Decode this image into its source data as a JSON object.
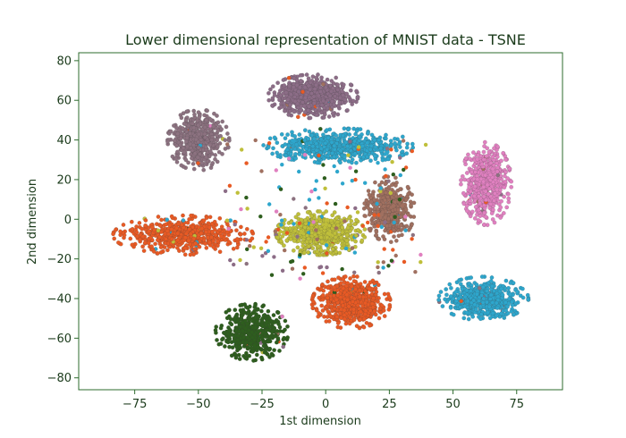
{
  "chart_data": {
    "type": "scatter",
    "title": "Lower dimensional representation of MNIST data - TSNE",
    "xlabel": "1st dimension",
    "ylabel": "2nd dimension",
    "xlim": [
      -97,
      93
    ],
    "ylim": [
      -86,
      84
    ],
    "xticks": [
      -75,
      -50,
      -25,
      0,
      25,
      50,
      75
    ],
    "yticks": [
      -80,
      -60,
      -40,
      -20,
      0,
      20,
      40,
      60,
      80
    ],
    "xtick_labels": [
      "−75",
      "−50",
      "−25",
      "0",
      "25",
      "50",
      "75"
    ],
    "ytick_labels": [
      "−80",
      "−60",
      "−40",
      "−20",
      "0",
      "20",
      "40",
      "60",
      "80"
    ],
    "grid": false,
    "legend": "none",
    "axis_color": "#2e6b2e",
    "clusters": [
      {
        "color": "#8c6d87",
        "center": [
          -5,
          62
        ],
        "spread": [
          16,
          10
        ],
        "count": 650
      },
      {
        "color": "#2ea6cc",
        "center": [
          5,
          37
        ],
        "spread": [
          27,
          8
        ],
        "count": 620
      },
      {
        "color": "#8c7280",
        "center": [
          -50,
          40
        ],
        "spread": [
          11,
          14
        ],
        "count": 500
      },
      {
        "color": "#e85a24",
        "center": [
          -56,
          -8
        ],
        "spread": [
          25,
          9
        ],
        "count": 560
      },
      {
        "color": "#bfbf3a",
        "center": [
          -2,
          -7
        ],
        "spread": [
          16,
          10
        ],
        "count": 580
      },
      {
        "color": "#a07060",
        "center": [
          25,
          5
        ],
        "spread": [
          9,
          15
        ],
        "count": 420
      },
      {
        "color": "#e080c0",
        "center": [
          63,
          18
        ],
        "spread": [
          9,
          19
        ],
        "count": 560
      },
      {
        "color": "#e85a24",
        "center": [
          10,
          -42
        ],
        "spread": [
          14,
          12
        ],
        "count": 620
      },
      {
        "color": "#2ea6cc",
        "center": [
          62,
          -40
        ],
        "spread": [
          16,
          10
        ],
        "count": 560
      },
      {
        "color": "#2e5e1e",
        "center": [
          -29,
          -57
        ],
        "spread": [
          13,
          13
        ],
        "count": 480
      }
    ]
  }
}
